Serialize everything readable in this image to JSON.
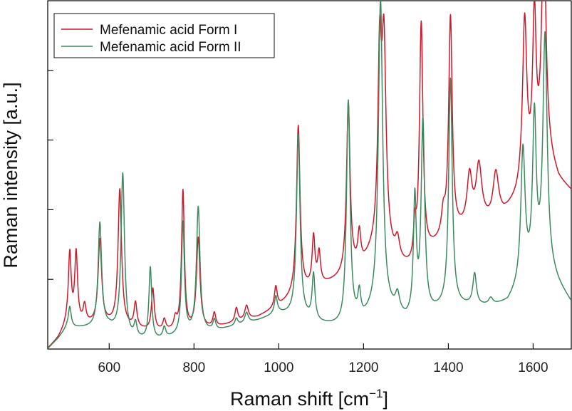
{
  "chart_data": {
    "type": "line",
    "title": "",
    "xlabel": "Raman shift [cm",
    "xlabel_sup": "−1",
    "xlabel_close": "]",
    "ylabel": "Raman intensity [a.u.]",
    "xlim": [
      455,
      1690
    ],
    "ylim": [
      0,
      100
    ],
    "x_ticks": [
      600,
      800,
      1000,
      1200,
      1400,
      1600
    ],
    "y_ticks": [
      20,
      40,
      60,
      80
    ],
    "y_tick_labels": false,
    "grid": false,
    "legend_position": "top-left",
    "series": [
      {
        "name": "Mefenamic acid Form I",
        "color": "#d0182a",
        "baseline": [
          [
            455,
            0
          ],
          [
            480,
            3
          ],
          [
            500,
            7
          ],
          [
            600,
            7
          ],
          [
            700,
            5
          ],
          [
            780,
            5
          ],
          [
            850,
            6
          ],
          [
            950,
            9
          ],
          [
            1000,
            12
          ],
          [
            1050,
            16
          ],
          [
            1100,
            18
          ],
          [
            1150,
            20
          ],
          [
            1200,
            24
          ],
          [
            1240,
            30
          ],
          [
            1280,
            24
          ],
          [
            1320,
            22
          ],
          [
            1360,
            28
          ],
          [
            1400,
            32
          ],
          [
            1440,
            34
          ],
          [
            1480,
            36
          ],
          [
            1500,
            36
          ],
          [
            1530,
            38
          ],
          [
            1560,
            42
          ],
          [
            1600,
            50
          ],
          [
            1630,
            56
          ],
          [
            1660,
            48
          ],
          [
            1690,
            45
          ]
        ],
        "peaks": [
          {
            "center": 507,
            "height": 20,
            "width": 4
          },
          {
            "center": 522,
            "height": 20,
            "width": 4
          },
          {
            "center": 542,
            "height": 5,
            "width": 4
          },
          {
            "center": 578,
            "height": 24,
            "width": 5
          },
          {
            "center": 625,
            "height": 39,
            "width": 5
          },
          {
            "center": 662,
            "height": 7,
            "width": 4
          },
          {
            "center": 703,
            "height": 12,
            "width": 4
          },
          {
            "center": 730,
            "height": 3,
            "width": 4
          },
          {
            "center": 756,
            "height": 3,
            "width": 4
          },
          {
            "center": 774,
            "height": 40,
            "width": 4
          },
          {
            "center": 810,
            "height": 26,
            "width": 5
          },
          {
            "center": 848,
            "height": 4,
            "width": 4
          },
          {
            "center": 900,
            "height": 4,
            "width": 4
          },
          {
            "center": 924,
            "height": 4,
            "width": 5
          },
          {
            "center": 993,
            "height": 6,
            "width": 4
          },
          {
            "center": 1046,
            "height": 48,
            "width": 5
          },
          {
            "center": 1082,
            "height": 14,
            "width": 4
          },
          {
            "center": 1095,
            "height": 9,
            "width": 4
          },
          {
            "center": 1164,
            "height": 49,
            "width": 5
          },
          {
            "center": 1190,
            "height": 9,
            "width": 4
          },
          {
            "center": 1238,
            "height": 50,
            "width": 5
          },
          {
            "center": 1248,
            "height": 56,
            "width": 6
          },
          {
            "center": 1280,
            "height": 6,
            "width": 6
          },
          {
            "center": 1321,
            "height": 10,
            "width": 4
          },
          {
            "center": 1336,
            "height": 68,
            "width": 5
          },
          {
            "center": 1388,
            "height": 6,
            "width": 5
          },
          {
            "center": 1405,
            "height": 62,
            "width": 5
          },
          {
            "center": 1450,
            "height": 14,
            "width": 7
          },
          {
            "center": 1472,
            "height": 16,
            "width": 8
          },
          {
            "center": 1512,
            "height": 13,
            "width": 8
          },
          {
            "center": 1580,
            "height": 47,
            "width": 6
          },
          {
            "center": 1603,
            "height": 43,
            "width": 5
          },
          {
            "center": 1625,
            "height": 64,
            "width": 6
          }
        ]
      },
      {
        "name": "Mefenamic acid Form II",
        "color": "#3d8a5e",
        "baseline": [
          [
            455,
            0
          ],
          [
            480,
            3
          ],
          [
            500,
            6
          ],
          [
            600,
            6
          ],
          [
            650,
            3
          ],
          [
            700,
            2
          ],
          [
            780,
            4
          ],
          [
            850,
            5
          ],
          [
            950,
            8
          ],
          [
            1000,
            10
          ],
          [
            1050,
            9
          ],
          [
            1100,
            7
          ],
          [
            1150,
            6
          ],
          [
            1200,
            8
          ],
          [
            1240,
            12
          ],
          [
            1300,
            8
          ],
          [
            1360,
            10
          ],
          [
            1400,
            12
          ],
          [
            1440,
            12
          ],
          [
            1500,
            12
          ],
          [
            1540,
            13
          ],
          [
            1560,
            16
          ],
          [
            1600,
            22
          ],
          [
            1630,
            24
          ],
          [
            1660,
            18
          ],
          [
            1690,
            13
          ]
        ],
        "peaks": [
          {
            "center": 507,
            "height": 6,
            "width": 4
          },
          {
            "center": 578,
            "height": 30,
            "width": 5
          },
          {
            "center": 632,
            "height": 46,
            "width": 5
          },
          {
            "center": 662,
            "height": 4,
            "width": 4
          },
          {
            "center": 697,
            "height": 21,
            "width": 4
          },
          {
            "center": 730,
            "height": 3,
            "width": 4
          },
          {
            "center": 774,
            "height": 32,
            "width": 4
          },
          {
            "center": 810,
            "height": 36,
            "width": 5
          },
          {
            "center": 848,
            "height": 3,
            "width": 4
          },
          {
            "center": 900,
            "height": 2,
            "width": 4
          },
          {
            "center": 924,
            "height": 3,
            "width": 5
          },
          {
            "center": 993,
            "height": 5,
            "width": 4
          },
          {
            "center": 1046,
            "height": 52,
            "width": 5
          },
          {
            "center": 1082,
            "height": 13,
            "width": 4
          },
          {
            "center": 1164,
            "height": 64,
            "width": 5
          },
          {
            "center": 1190,
            "height": 7,
            "width": 4
          },
          {
            "center": 1240,
            "height": 88,
            "width": 6
          },
          {
            "center": 1280,
            "height": 5,
            "width": 6
          },
          {
            "center": 1321,
            "height": 33,
            "width": 4
          },
          {
            "center": 1340,
            "height": 55,
            "width": 5
          },
          {
            "center": 1405,
            "height": 65,
            "width": 5
          },
          {
            "center": 1462,
            "height": 9,
            "width": 5
          },
          {
            "center": 1500,
            "height": 2,
            "width": 6
          },
          {
            "center": 1576,
            "height": 38,
            "width": 6
          },
          {
            "center": 1603,
            "height": 43,
            "width": 5
          },
          {
            "center": 1628,
            "height": 65,
            "width": 6
          }
        ]
      }
    ]
  }
}
